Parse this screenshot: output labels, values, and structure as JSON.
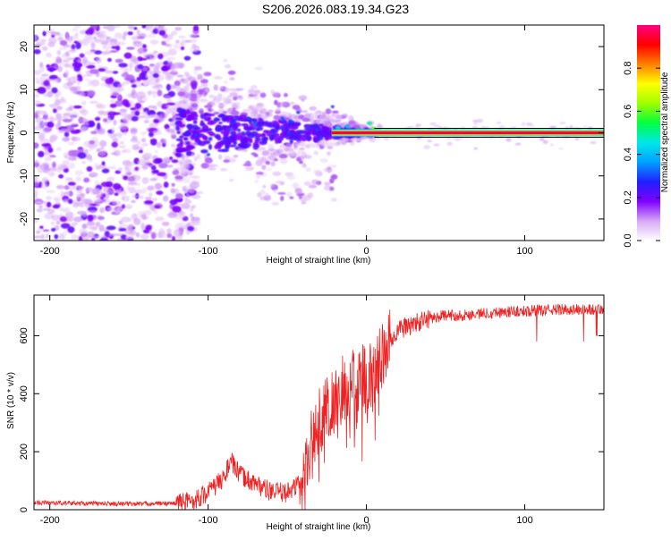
{
  "title": "S206.2026.083.19.34.G23",
  "chart_data": [
    {
      "type": "heatmap",
      "name": "spectrogram",
      "xlabel": "Height of straight line (km)",
      "ylabel": "Frequency (Hz)",
      "xlim": [
        -210,
        150
      ],
      "ylim": [
        -25,
        25
      ],
      "xticks": [
        -200,
        -100,
        0,
        100
      ],
      "xtick_labels": [
        "-200",
        "-100",
        "0",
        "100"
      ],
      "yticks": [
        -20,
        -10,
        0,
        10,
        20
      ],
      "ytick_labels": [
        "-20",
        "-10",
        "0",
        "10",
        "20"
      ],
      "colorbar": {
        "label": "Normalized spectral amplitude",
        "range": [
          0,
          1
        ],
        "ticks": [
          0.0,
          0.2,
          0.4,
          0.6,
          0.8
        ],
        "tick_labels": [
          "0.0",
          "0.2",
          "0.4",
          "0.6",
          "0.8"
        ],
        "colors": [
          "#ffffff",
          "#d6a8f5",
          "#8000ff",
          "#2020ff",
          "#00a0ff",
          "#00e8e8",
          "#00ff40",
          "#a0ff00",
          "#ffff00",
          "#ff8000",
          "#ff0000",
          "#ff0080"
        ]
      },
      "features": {
        "noise_region_x": [
          -210,
          -115
        ],
        "noise_spread_hz": 25,
        "transition_region_x": [
          -120,
          5
        ],
        "tone_start_x": 5,
        "tone_frequency_hz": 0,
        "tone_amplitude": 0.95
      }
    },
    {
      "type": "line",
      "name": "snr",
      "xlabel": "Height of straight line (km)",
      "ylabel": "SNR (10 * v/v)",
      "xlim": [
        -210,
        150
      ],
      "ylim": [
        0,
        740
      ],
      "xticks": [
        -200,
        -100,
        0,
        100
      ],
      "xtick_labels": [
        "-200",
        "-100",
        "0",
        "100"
      ],
      "yticks": [
        0,
        200,
        400,
        600
      ],
      "ytick_labels": [
        "0",
        "200",
        "400",
        "600"
      ],
      "series": [
        {
          "name": "SNR",
          "color": "#ee2222",
          "envelope": {
            "x": [
              -210,
              -180,
              -150,
              -120,
              -110,
              -100,
              -90,
              -86,
              -80,
              -70,
              -60,
              -50,
              -40,
              -35,
              -30,
              -25,
              -20,
              -15,
              -10,
              -5,
              0,
              5,
              10,
              15,
              20,
              30,
              40,
              50,
              60,
              80,
              100,
              120,
              140,
              150
            ],
            "y": [
              25,
              22,
              20,
              22,
              30,
              60,
              110,
              170,
              120,
              90,
              60,
              60,
              100,
              230,
              300,
              360,
              380,
              420,
              430,
              450,
              450,
              480,
              530,
              580,
              620,
              640,
              660,
              670,
              670,
              680,
              685,
              690,
              690,
              690
            ]
          }
        }
      ]
    }
  ]
}
